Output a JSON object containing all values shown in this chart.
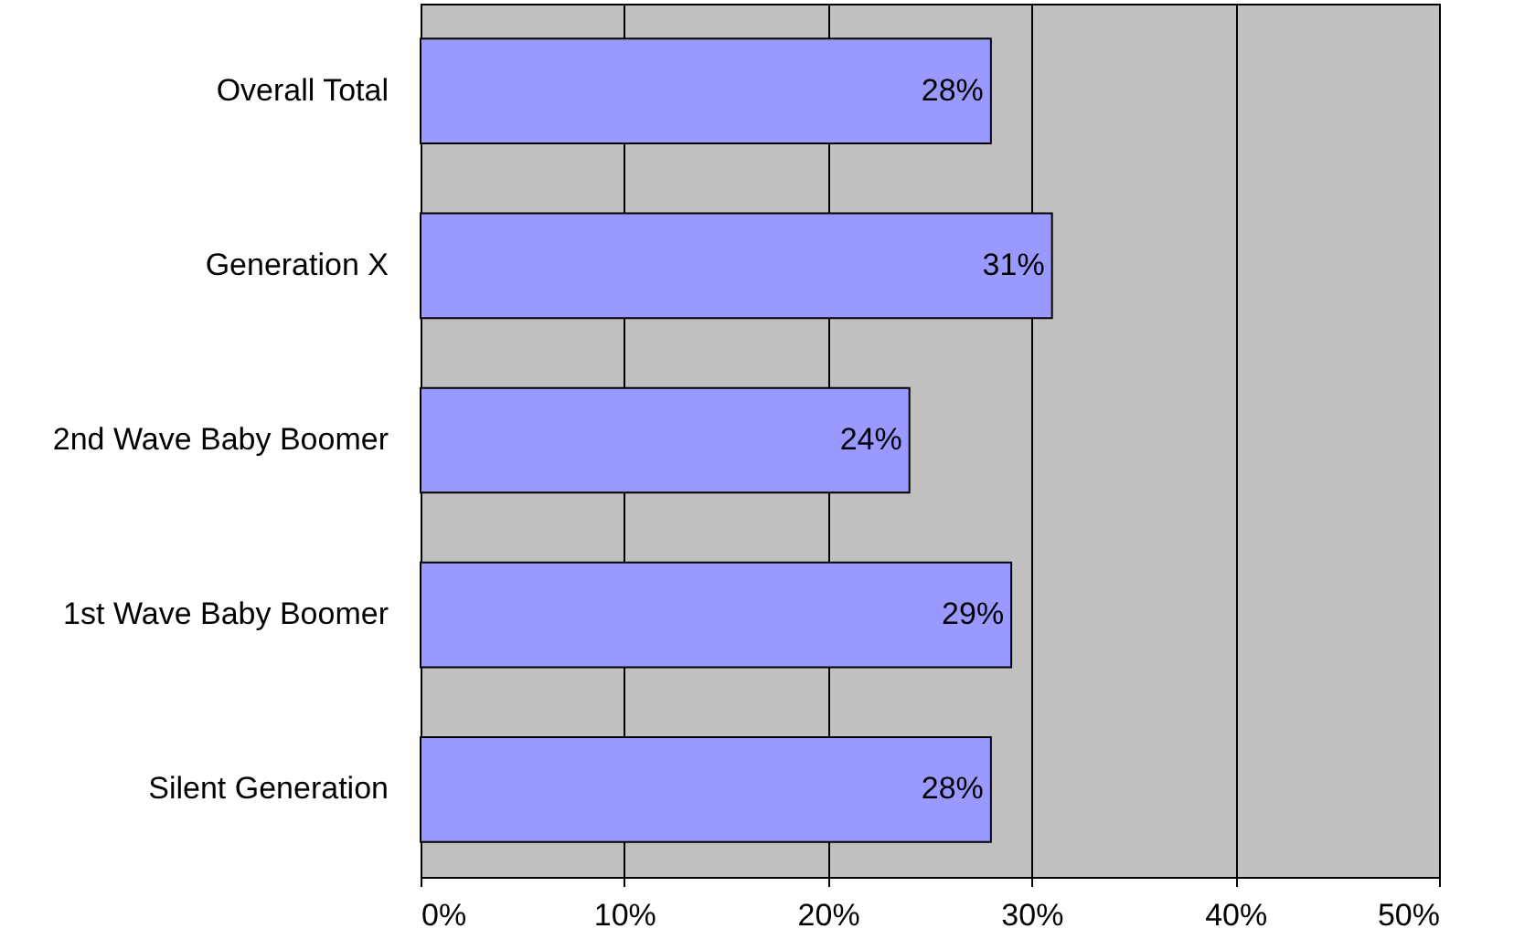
{
  "chart_data": {
    "type": "bar",
    "orientation": "horizontal",
    "categories": [
      "Overall Total",
      "Generation X",
      "2nd Wave Baby Boomer",
      "1st Wave Baby Boomer",
      "Silent Generation"
    ],
    "values": [
      28,
      31,
      24,
      29,
      28
    ],
    "value_labels": [
      "28%",
      "31%",
      "24%",
      "29%",
      "28%"
    ],
    "color": "#9999ff",
    "xlim": [
      0,
      50
    ],
    "xticks": [
      {
        "value": 0,
        "label": "0%"
      },
      {
        "value": 10,
        "label": "10%"
      },
      {
        "value": 20,
        "label": "20%"
      },
      {
        "value": 30,
        "label": "30%"
      },
      {
        "value": 40,
        "label": "40%"
      },
      {
        "value": 50,
        "label": "50%"
      }
    ],
    "grid": "x"
  }
}
